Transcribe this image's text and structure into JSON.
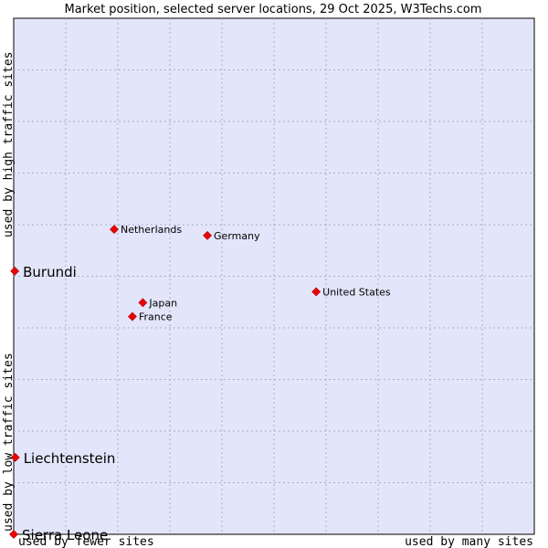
{
  "chart_data": {
    "type": "scatter",
    "title": "Market position, selected server locations, 29 Oct 2025, W3Techs.com",
    "xlabel_low": "used by fewer sites",
    "xlabel_high": "used by many sites",
    "ylabel_low": "used by low traffic sites",
    "ylabel_high": "used by high traffic sites",
    "xlim": [
      0,
      100
    ],
    "ylim": [
      0,
      100
    ],
    "grid": true,
    "colors": {
      "plot_bg": "#e3e5fa",
      "point": "#ee0000",
      "grid": "#aab0c8"
    },
    "points": [
      {
        "name": "Netherlands",
        "x": 19.3,
        "y": 59.1,
        "emphasis": false
      },
      {
        "name": "Germany",
        "x": 37.2,
        "y": 57.9,
        "emphasis": false
      },
      {
        "name": "United States",
        "x": 58.1,
        "y": 47.0,
        "emphasis": false
      },
      {
        "name": "Japan",
        "x": 24.8,
        "y": 44.9,
        "emphasis": false
      },
      {
        "name": "France",
        "x": 22.8,
        "y": 42.2,
        "emphasis": false
      },
      {
        "name": "Burundi",
        "x": 0.2,
        "y": 51.0,
        "emphasis": true
      },
      {
        "name": "Liechtenstein",
        "x": 0.3,
        "y": 14.9,
        "emphasis": true
      },
      {
        "name": "Sierra Leone",
        "x": 0.0,
        "y": 0.0,
        "emphasis": true
      }
    ]
  }
}
